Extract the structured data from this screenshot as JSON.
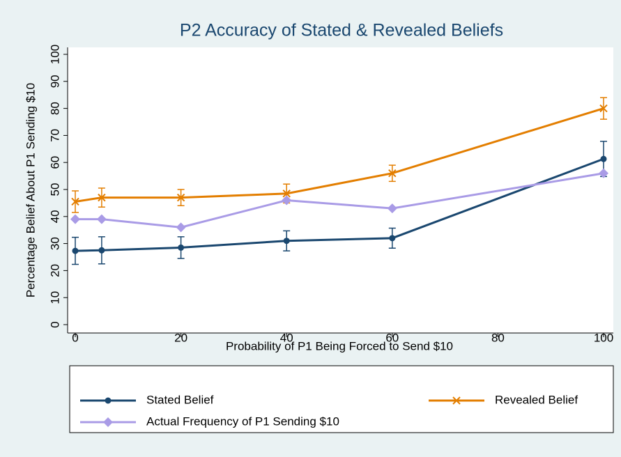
{
  "chart_data": {
    "type": "line",
    "title": "P2 Accuracy of Stated & Revealed Beliefs",
    "x_label": "Probability of P1 Being Forced to Send $10",
    "y_label": "Percentage Belief About P1 Sending $10",
    "x": [
      0,
      5,
      20,
      40,
      60,
      100
    ],
    "series": [
      {
        "name": "Stated Belief",
        "color": "#1a476f",
        "marker": "circle",
        "values": [
          27.3,
          27.5,
          28.5,
          31,
          32,
          61.3
        ],
        "errors": [
          5,
          5,
          4,
          3.7,
          3.7,
          6.5
        ]
      },
      {
        "name": "Revealed Belief",
        "color": "#e37e00",
        "marker": "x",
        "values": [
          45.5,
          47,
          47,
          48.5,
          56,
          80
        ],
        "errors": [
          4,
          3.5,
          3,
          3.5,
          3,
          4
        ]
      },
      {
        "name": "Actual Frequency of P1 Sending $10",
        "color": "#a99be6",
        "marker": "diamond",
        "values": [
          39,
          39,
          36,
          46,
          43,
          56
        ]
      }
    ],
    "xlim": [
      0,
      100
    ],
    "xticks": [
      0,
      20,
      40,
      60,
      80,
      100
    ],
    "ylim": [
      0,
      100
    ],
    "yticks": [
      0,
      10,
      20,
      30,
      40,
      50,
      60,
      70,
      80,
      90,
      100
    ],
    "grid": false,
    "legend": "bottom"
  }
}
